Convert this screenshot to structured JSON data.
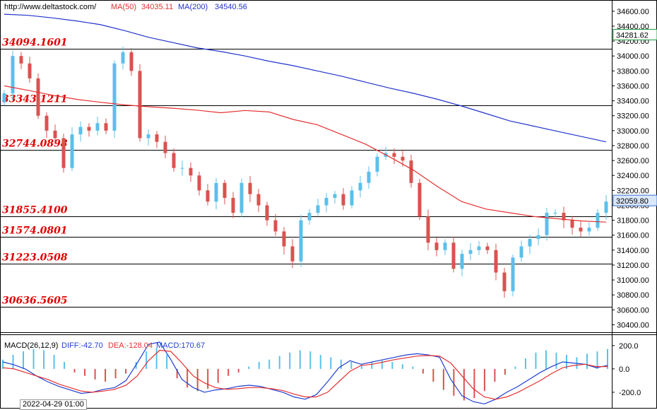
{
  "header": {
    "site": "http://www.deltastock.com/",
    "ma50_label": "MA(50)",
    "ma50_value": "34035.11",
    "ma200_label": "MA(200)",
    "ma200_value": "34540.56"
  },
  "macd_header": {
    "name": "MACD(26,12,9)",
    "diff": "DIFF:-42.70",
    "dea": "DEA:-128.04",
    "macd": "MACD:170.67"
  },
  "date_label": "2022-04-29 01:00",
  "colors": {
    "up": "#5bc0eb",
    "down": "#d9534f",
    "ma50": "#e53030",
    "ma200": "#2233cc",
    "level_text": "#e00000",
    "diff_line": "#1f3fd1",
    "dea_line": "#e53030"
  },
  "chart_data": [
    {
      "type": "candlestick",
      "title": "",
      "ylim": [
        30300,
        34750
      ],
      "y_ticks": [
        30400,
        30600,
        30800,
        31000,
        31200,
        31400,
        31600,
        31800,
        32000,
        32200,
        32400,
        32600,
        32800,
        33000,
        33200,
        33400,
        33600,
        33800,
        34000,
        34200,
        34400,
        34600
      ],
      "y_tick_labels": [
        "30400.00",
        "30600.00",
        "30800.00",
        "31000.00",
        "31200.00",
        "31400.00",
        "31600.00",
        "31800.00",
        "32000.00",
        "32200.00",
        "32400.00",
        "32600.00",
        "32800.00",
        "33000.00",
        "33200.00",
        "33400.00",
        "33600.00",
        "33800.00",
        "34000.00",
        "34200.00",
        "34400.00",
        "34600.00"
      ],
      "levels": [
        {
          "value": 34094.1601,
          "label": "34094.1601"
        },
        {
          "value": 33343.1211,
          "label": "33343.1211"
        },
        {
          "value": 32744.0898,
          "label": "32744.0898"
        },
        {
          "value": 31855.41,
          "label": "31855.4100"
        },
        {
          "value": 31574.0801,
          "label": "31574.0801"
        },
        {
          "value": 31223.0508,
          "label": "31223.0508"
        },
        {
          "value": 30636.5605,
          "label": "30636.5605"
        }
      ],
      "price_flags": [
        {
          "value": 34281.62,
          "label": "34281.62",
          "style": "green"
        },
        {
          "value": 32059.8,
          "label": "32059.80",
          "style": "blue"
        }
      ],
      "series": [
        {
          "name": "MA(50)",
          "values": [
            33600,
            33540,
            33475,
            33420,
            33380,
            33345,
            33320,
            33300,
            33275,
            33240,
            33270,
            33250,
            33150,
            33080,
            32950,
            32820,
            32650,
            32470,
            32250,
            32050,
            31950,
            31900,
            31850,
            31820,
            31790,
            31775
          ]
        },
        {
          "name": "MA(200)",
          "values": [
            34560,
            34545,
            34510,
            34470,
            34420,
            34340,
            34250,
            34180,
            34110,
            34060,
            34000,
            33930,
            33870,
            33800,
            33730,
            33650,
            33570,
            33500,
            33420,
            33330,
            33230,
            33130,
            33060,
            32990,
            32920,
            32850
          ]
        }
      ],
      "closes": [
        33500,
        34000,
        33900,
        33700,
        33200,
        33000,
        32900,
        32500,
        32950,
        33050,
        33000,
        33100,
        33000,
        33900,
        34050,
        33800,
        32900,
        32950,
        32850,
        32700,
        32500,
        32500,
        32400,
        32200,
        32050,
        32300,
        32100,
        31900,
        32300,
        32150,
        32000,
        31800,
        31650,
        31450,
        31250,
        31800,
        31900,
        32000,
        32100,
        32150,
        32000,
        32200,
        32300,
        32450,
        32650,
        32700,
        32650,
        32600,
        32300,
        31850,
        31500,
        31400,
        31500,
        31150,
        31350,
        31400,
        31450,
        31400,
        31100,
        30850,
        31300,
        31450,
        31550,
        31600,
        31900,
        31900,
        31800,
        31700,
        31650,
        31700,
        31900,
        32050
      ]
    },
    {
      "type": "macd",
      "title": "",
      "ylim": [
        -340,
        290
      ],
      "y_ticks": [
        200,
        0,
        -200
      ],
      "y_tick_labels": [
        "200.0",
        "0.0",
        "-200.0"
      ],
      "series": [
        {
          "name": "DIFF",
          "values": [
            60,
            35,
            0,
            -60,
            -110,
            -150,
            -180,
            -210,
            -200,
            -175,
            -160,
            -100,
            50,
            210,
            230,
            80,
            -90,
            -160,
            -200,
            -180,
            -170,
            -150,
            -140,
            -150,
            -175,
            -200,
            -240,
            -260,
            -220,
            -110,
            10,
            70,
            40,
            60,
            80,
            100,
            120,
            130,
            120,
            100,
            -90,
            -230,
            -280,
            -300,
            -260,
            -200,
            -150,
            -90,
            -30,
            20,
            60,
            50,
            40,
            10,
            30
          ]
        },
        {
          "name": "DEA",
          "values": [
            10,
            0,
            -30,
            -60,
            -90,
            -130,
            -160,
            -190,
            -200,
            -190,
            -175,
            -140,
            -60,
            70,
            160,
            150,
            50,
            -60,
            -120,
            -160,
            -175,
            -170,
            -160,
            -160,
            -170,
            -185,
            -215,
            -240,
            -240,
            -200,
            -110,
            -20,
            30,
            40,
            60,
            80,
            95,
            110,
            115,
            110,
            50,
            -60,
            -170,
            -240,
            -260,
            -240,
            -200,
            -150,
            -100,
            -40,
            10,
            30,
            40,
            20,
            20
          ]
        },
        {
          "name": "MACD",
          "values": [
            80,
            120,
            150,
            170,
            160,
            120,
            60,
            -30,
            -60,
            -90,
            -110,
            -80,
            -40,
            60,
            150,
            180,
            120,
            -80,
            -160,
            -190,
            -170,
            -120,
            -60,
            -30,
            20,
            60,
            80,
            110,
            140,
            160,
            150,
            120,
            100,
            80,
            60,
            40,
            60,
            70,
            60,
            40,
            20,
            -40,
            -110,
            -180,
            -230,
            -270,
            -250,
            -190,
            -110,
            -50,
            20,
            90,
            140,
            160,
            140,
            120,
            100,
            130,
            150,
            170
          ]
        }
      ]
    }
  ]
}
